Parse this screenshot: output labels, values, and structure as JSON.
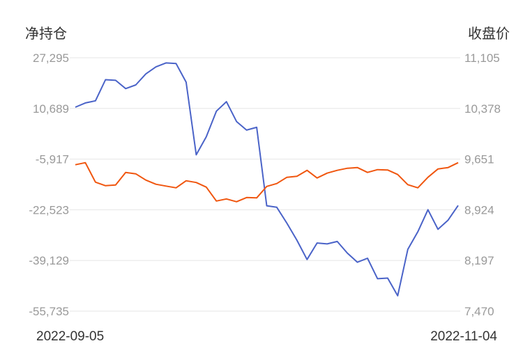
{
  "chart_data": {
    "type": "line",
    "left_axis_label": "净持仓",
    "right_axis_label": "收盘价",
    "left_ticks": [
      "27,295",
      "10,689",
      "-5,917",
      "-22,523",
      "-39,129",
      "-55,735"
    ],
    "right_ticks": [
      "11,105",
      "10,378",
      "9,651",
      "8,924",
      "8,197",
      "7,470"
    ],
    "left_range": [
      -55735,
      27295
    ],
    "right_range": [
      7470,
      11105
    ],
    "x_start_label": "2022-09-05",
    "x_end_label": "2022-11-04",
    "grid": true,
    "series": [
      {
        "axis": "left",
        "color": "#4a63c8",
        "values": [
          11100,
          12500,
          13200,
          20100,
          19900,
          17200,
          18400,
          22000,
          24300,
          25600,
          25400,
          19300,
          -4500,
          1400,
          9800,
          12900,
          6400,
          3600,
          4500,
          -21200,
          -21700,
          -26900,
          -32500,
          -38800,
          -33400,
          -33700,
          -32900,
          -36700,
          -39700,
          -38400,
          -45100,
          -44900,
          -50700,
          -35500,
          -29700,
          -22500,
          -28900,
          -25900,
          -21100
        ]
      },
      {
        "axis": "right",
        "color": "#f0560f",
        "values": [
          9570,
          9600,
          9320,
          9270,
          9280,
          9460,
          9440,
          9350,
          9290,
          9265,
          9240,
          9340,
          9315,
          9250,
          9050,
          9080,
          9040,
          9100,
          9095,
          9260,
          9300,
          9390,
          9405,
          9490,
          9380,
          9450,
          9490,
          9520,
          9530,
          9460,
          9500,
          9495,
          9430,
          9285,
          9240,
          9390,
          9510,
          9530,
          9600
        ]
      }
    ]
  }
}
